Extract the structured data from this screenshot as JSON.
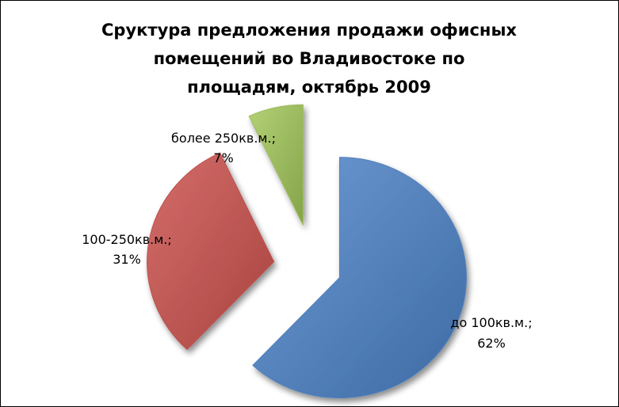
{
  "chart_data": {
    "type": "pie",
    "title_lines": [
      "Сруктура предложения продажи офисных",
      "помещений во Владивостоке по",
      "площадям, октябрь 2009"
    ],
    "slices": [
      {
        "label": "до 100кв.м.;",
        "percent_label": "62%",
        "value": 62,
        "color": "#4f81bd"
      },
      {
        "label": "100-250кв.м.;",
        "percent_label": "31%",
        "value": 31,
        "color": "#c0504d"
      },
      {
        "label": "более 250кв.м.;",
        "percent_label": "7%",
        "value": 7,
        "color": "#9bbb59"
      }
    ],
    "exploded": true,
    "style": "3D"
  }
}
